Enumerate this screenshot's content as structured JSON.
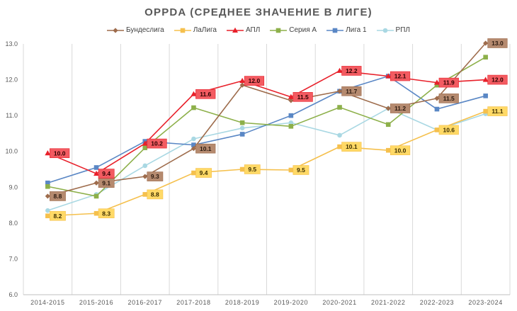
{
  "chart_data": {
    "type": "line",
    "title": "OPPDA (СРЕДНЕЕ ЗНАЧЕНИЕ В ЛИГЕ)",
    "xlabel": "",
    "ylabel": "",
    "ylim": [
      6.0,
      13.0
    ],
    "yticks": [
      "6.0",
      "7.0",
      "8.0",
      "9.0",
      "10.0",
      "11.0",
      "12.0",
      "13.0"
    ],
    "grid": "vertical",
    "legend_position": "top",
    "categories": [
      "2014-2015",
      "2015-2016",
      "2016-2017",
      "2017-2018",
      "2018-2019",
      "2019-2020",
      "2020-2021",
      "2021-2022",
      "2022-2023",
      "2023-2024"
    ],
    "series": [
      {
        "name": "Бундеслига",
        "color": "#9e6c4c",
        "label_bg": "#b58a6f",
        "label_color": "#2b1a10",
        "marker": "diamond",
        "values": [
          8.75,
          9.12,
          9.3,
          10.08,
          11.85,
          11.42,
          11.68,
          11.2,
          11.48,
          13.02
        ],
        "labels": [
          "8.8",
          "9.1",
          "9.3",
          "10.1",
          "11.8",
          "11.4",
          "11.7",
          "11.2",
          "11.5",
          "13.0"
        ],
        "show_label": [
          true,
          true,
          true,
          true,
          false,
          false,
          true,
          true,
          true,
          true
        ]
      },
      {
        "name": "ЛаЛига",
        "color": "#f5c04d",
        "label_bg": "#ffd966",
        "label_color": "#3a2d00",
        "marker": "square",
        "values": [
          8.2,
          8.27,
          8.8,
          9.4,
          9.5,
          9.48,
          10.13,
          10.03,
          10.6,
          11.12
        ],
        "labels": [
          "8.2",
          "8.3",
          "8.8",
          "9.4",
          "9.5",
          "9.5",
          "10.1",
          "10.0",
          "10.6",
          "11.1"
        ],
        "show_label": [
          true,
          true,
          true,
          true,
          true,
          true,
          true,
          true,
          true,
          true
        ]
      },
      {
        "name": "АПЛ",
        "color": "#e8202a",
        "label_bg": "#f35b61",
        "label_color": "#2b0000",
        "marker": "triangle",
        "values": [
          9.95,
          9.38,
          10.22,
          11.6,
          11.97,
          11.52,
          12.25,
          12.1,
          11.92,
          12.0
        ],
        "labels": [
          "10.0",
          "9.4",
          "10.2",
          "11.6",
          "12.0",
          "11.5",
          "12.2",
          "12.1",
          "11.9",
          "12.0"
        ],
        "show_label": [
          true,
          true,
          true,
          true,
          true,
          true,
          true,
          true,
          true,
          true
        ]
      },
      {
        "name": "Серия А",
        "color": "#8db04a",
        "label_bg": "#a9c46e",
        "label_color": "#1f2b00",
        "marker": "square",
        "values": [
          9.02,
          8.75,
          10.1,
          11.22,
          10.8,
          10.7,
          11.23,
          10.75,
          11.85,
          12.63
        ],
        "labels": [
          "9.0",
          "8.8",
          "10.1",
          "11.2",
          "10.8",
          "10.7",
          "11.2",
          "10.8",
          "11.9",
          "12.6"
        ],
        "show_label": [
          false,
          false,
          false,
          false,
          false,
          false,
          false,
          false,
          false,
          false
        ]
      },
      {
        "name": "Лига 1",
        "color": "#5a87c5",
        "label_bg": "#8eaadb",
        "label_color": "#0d1f3a",
        "marker": "square",
        "values": [
          9.12,
          9.55,
          10.28,
          10.18,
          10.48,
          11.0,
          11.68,
          12.1,
          11.18,
          11.55
        ],
        "labels": [
          "9.1",
          "9.6",
          "10.3",
          "10.2",
          "10.5",
          "11.0",
          "11.7",
          "12.1",
          "11.2",
          "11.6"
        ],
        "show_label": [
          false,
          false,
          false,
          false,
          false,
          false,
          false,
          false,
          false,
          false
        ]
      },
      {
        "name": "РПЛ",
        "color": "#a9d8e3",
        "label_bg": "#c9e7ef",
        "label_color": "#0d2a33",
        "marker": "circle",
        "values": [
          8.35,
          8.8,
          9.6,
          10.35,
          10.65,
          10.8,
          10.45,
          11.2,
          10.6,
          11.05
        ],
        "labels": [
          "8.4",
          "8.8",
          "9.6",
          "10.4",
          "10.7",
          "10.8",
          "10.5",
          "11.2",
          "10.6",
          "11.1"
        ],
        "show_label": [
          false,
          false,
          false,
          false,
          false,
          false,
          false,
          false,
          false,
          false
        ]
      }
    ]
  }
}
